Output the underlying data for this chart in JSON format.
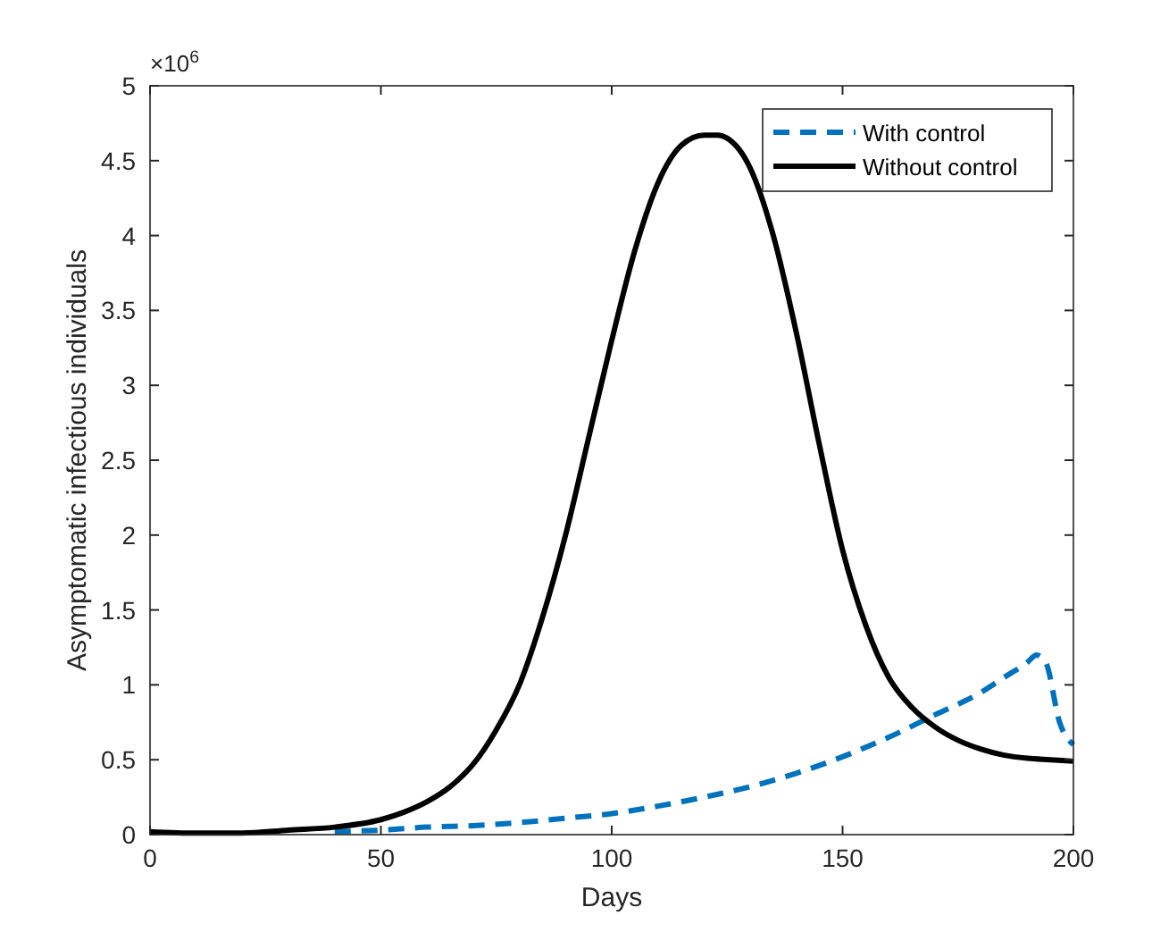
{
  "chart_data": {
    "type": "line",
    "xlabel": "Days",
    "ylabel": "Asymptomatic infectious individuals",
    "annotations": [
      "×10$^{6}$"
    ],
    "xlim": [
      0,
      200
    ],
    "ylim": [
      0,
      5
    ],
    "xticks": [
      0,
      50,
      100,
      150,
      200
    ],
    "yticks": [
      0,
      0.5,
      1,
      1.5,
      2,
      2.5,
      3,
      3.5,
      4,
      4.5,
      5
    ],
    "grid": false,
    "legend": "top right",
    "series": [
      {
        "name": "With control",
        "color": "#0072bd",
        "line_style": "dashed",
        "x": [
          40,
          50,
          60,
          70,
          80,
          90,
          100,
          110,
          120,
          130,
          140,
          150,
          160,
          170,
          180,
          185,
          190,
          192,
          194,
          197,
          200
        ],
        "values": [
          0.02,
          0.03,
          0.05,
          0.06,
          0.08,
          0.11,
          0.14,
          0.19,
          0.25,
          0.32,
          0.41,
          0.52,
          0.65,
          0.8,
          0.95,
          1.05,
          1.15,
          1.2,
          1.15,
          0.75,
          0.6
        ]
      },
      {
        "name": "Without control",
        "color": "#000000",
        "line_style": "solid",
        "x": [
          0,
          10,
          20,
          30,
          40,
          50,
          55,
          60,
          65,
          70,
          75,
          80,
          85,
          90,
          95,
          100,
          105,
          110,
          115,
          120,
          123,
          125,
          130,
          135,
          140,
          145,
          150,
          155,
          160,
          165,
          170,
          175,
          180,
          185,
          190,
          195,
          200
        ],
        "values": [
          0.02,
          0.01,
          0.01,
          0.03,
          0.05,
          0.1,
          0.15,
          0.22,
          0.32,
          0.47,
          0.7,
          1.0,
          1.45,
          2.0,
          2.65,
          3.3,
          3.9,
          4.35,
          4.6,
          4.67,
          4.67,
          4.65,
          4.45,
          4.0,
          3.35,
          2.6,
          1.9,
          1.4,
          1.05,
          0.85,
          0.72,
          0.63,
          0.57,
          0.53,
          0.51,
          0.5,
          0.49
        ]
      }
    ]
  }
}
